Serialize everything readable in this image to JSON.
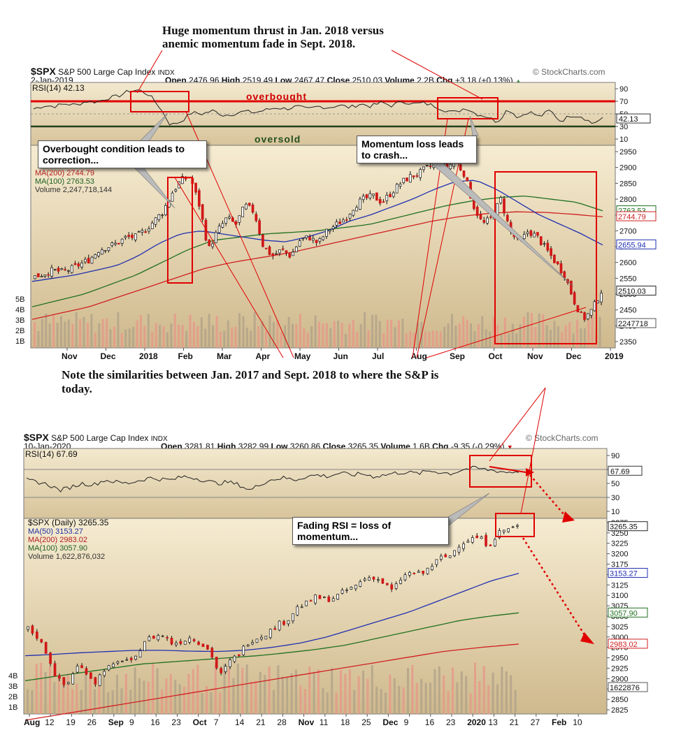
{
  "captions": {
    "top_line1": "Huge momentum thrust in Jan. 2018 versus",
    "top_line2": "anemic momentum fade in Sept. 2018.",
    "middle_line1": "Note the similarities between Jan. 2017 and Sept. 2018 to where the S&P is",
    "middle_line2": "today."
  },
  "chart_data": [
    {
      "type": "candlestick",
      "symbol": "$SPX",
      "name": "S&P 500 Large Cap Index",
      "exchange": "INDX",
      "date": "2-Jan-2019",
      "watermark": "© StockCharts.com",
      "quote": {
        "open": "2476.96",
        "high": "2519.49",
        "low": "2467.47",
        "close": "2510.03",
        "volume": "2.2B",
        "chg": "+3.18 (+0.13%)",
        "chg_arrow": "▲",
        "labels": {
          "open": "Open",
          "high": "High",
          "low": "Low",
          "close": "Close",
          "volume": "Volume",
          "chg": "Chg"
        }
      },
      "rsi": {
        "label": "RSI(14) 42.13",
        "value": 42.13,
        "value_label": "42.13",
        "ticks": [
          "90",
          "70",
          "50",
          "30",
          "10"
        ],
        "overbought": "overbought",
        "oversold": "oversold",
        "series": [
          58,
          63,
          62,
          66,
          64,
          70,
          69,
          75,
          78,
          86,
          88,
          80,
          60,
          32,
          38,
          52,
          50,
          55,
          48,
          50,
          54,
          52,
          56,
          60,
          58,
          62,
          57,
          62,
          60,
          64,
          60,
          66,
          62,
          68,
          63,
          70,
          66,
          67,
          63,
          56,
          52,
          60,
          50,
          46,
          37,
          58,
          44,
          54,
          45,
          56,
          38,
          48,
          46,
          35,
          42
        ]
      },
      "price": {
        "ticks": [
          "2950",
          "2900",
          "2850",
          "2800",
          "2750",
          "2700",
          "2650",
          "2600",
          "2550",
          "2500",
          "2450",
          "2400",
          "2350"
        ],
        "ylim": [
          2330,
          2970
        ],
        "last_label": "2510.03",
        "ma50_label": "2655.94",
        "ma100_label": "2763.53",
        "ma200_label": "2744.79",
        "legend": {
          "ma200": "MA(200) 2744.79",
          "ma100": "MA(100) 2763.53",
          "volume": "Volume 2,247,718,144"
        },
        "close_series": [
          2555,
          2565,
          2575,
          2570,
          2580,
          2595,
          2610,
          2640,
          2650,
          2660,
          2680,
          2680,
          2700,
          2730,
          2760,
          2820,
          2860,
          2870,
          2780,
          2640,
          2700,
          2740,
          2720,
          2780,
          2760,
          2650,
          2620,
          2640,
          2620,
          2670,
          2680,
          2660,
          2700,
          2720,
          2740,
          2780,
          2800,
          2810,
          2790,
          2820,
          2850,
          2870,
          2880,
          2900,
          2910,
          2900,
          2920,
          2880,
          2780,
          2720,
          2740,
          2800,
          2700,
          2660,
          2700,
          2680,
          2640,
          2600,
          2560,
          2480,
          2420,
          2450,
          2510
        ],
        "ma50_series": [
          2540,
          2550,
          2560,
          2575,
          2590,
          2620,
          2660,
          2690,
          2700,
          2690,
          2680,
          2670,
          2665,
          2680,
          2700,
          2730,
          2750,
          2775,
          2800,
          2830,
          2855,
          2860,
          2830,
          2790,
          2750,
          2720,
          2690,
          2655
        ],
        "ma100_series": [
          2460,
          2480,
          2500,
          2530,
          2560,
          2600,
          2640,
          2670,
          2680,
          2690,
          2695,
          2700,
          2710,
          2720,
          2740,
          2760,
          2780,
          2795,
          2805,
          2810,
          2800,
          2790,
          2763
        ],
        "ma200_series": [
          2420,
          2440,
          2460,
          2490,
          2520,
          2550,
          2580,
          2600,
          2615,
          2630,
          2650,
          2670,
          2690,
          2710,
          2730,
          2745,
          2755,
          2760,
          2758,
          2752,
          2744
        ]
      },
      "volume": {
        "ticks": [
          "5B",
          "4B",
          "3B",
          "2B",
          "1B"
        ],
        "last_label": "2247718"
      },
      "x_ticks": [
        "Nov",
        "Dec",
        "2018",
        "Feb",
        "Mar",
        "Apr",
        "May",
        "Jun",
        "Jul",
        "Aug",
        "Sep",
        "Oct",
        "Nov",
        "Dec",
        "2019"
      ],
      "callouts": {
        "left": "Overbought condition leads to correction...",
        "right": "Momentum loss leads to crash..."
      }
    },
    {
      "type": "candlestick",
      "symbol": "$SPX",
      "name": "S&P 500 Large Cap Index",
      "exchange": "INDX",
      "date": "10-Jan-2020",
      "watermark": "© StockCharts.com",
      "quote": {
        "open": "3281.81",
        "high": "3282.99",
        "low": "3260.86",
        "close": "3265.35",
        "volume": "1.6B",
        "chg": "-9.35 (-0.29%)",
        "chg_arrow": "▼",
        "labels": {
          "open": "Open",
          "high": "High",
          "low": "Low",
          "close": "Close",
          "volume": "Volume",
          "chg": "Chg"
        }
      },
      "rsi": {
        "label": "RSI(14) 67.69",
        "value": 67.69,
        "value_label": "67.69",
        "ticks": [
          "90",
          "70",
          "50",
          "30",
          "10"
        ],
        "series": [
          55,
          52,
          48,
          40,
          45,
          50,
          48,
          55,
          52,
          50,
          54,
          58,
          56,
          55,
          60,
          58,
          54,
          50,
          52,
          48,
          40,
          50,
          56,
          58,
          55,
          60,
          62,
          60,
          65,
          62,
          64,
          60,
          62,
          65,
          66,
          64,
          68,
          66,
          64,
          70,
          72,
          70,
          68,
          66,
          67
        ]
      },
      "price": {
        "ticks": [
          "3275",
          "3250",
          "3225",
          "3200",
          "3175",
          "3150",
          "3125",
          "3100",
          "3075",
          "3050",
          "3025",
          "3000",
          "2975",
          "2950",
          "2925",
          "2900",
          "2875",
          "2850",
          "2825"
        ],
        "ylim": [
          2815,
          3285
        ],
        "last_label": "3265.35",
        "ma50_label": "3153.27",
        "ma100_label": "3057.90",
        "ma200_label": "2983.02",
        "legend": {
          "title": "$SPX (Daily) 3265.35",
          "ma50": "MA(50) 3153.27",
          "ma200": "MA(200) 2983.02",
          "ma100": "MA(100) 3057.90",
          "volume": "Volume 1,622,876,032"
        },
        "close_series": [
          3020,
          3000,
          2960,
          2900,
          2880,
          2930,
          2920,
          2890,
          2925,
          2930,
          2950,
          2935,
          2990,
          3000,
          3005,
          2985,
          2990,
          3000,
          2985,
          2965,
          2905,
          2940,
          2960,
          2990,
          3000,
          3010,
          3030,
          3040,
          3070,
          3080,
          3095,
          3090,
          3095,
          3110,
          3120,
          3140,
          3145,
          3130,
          3110,
          3145,
          3155,
          3150,
          3170,
          3190,
          3195,
          3225,
          3235,
          3240,
          3220,
          3250,
          3260,
          3265
        ],
        "ma50_series": [
          2955,
          2958,
          2962,
          2965,
          2968,
          2968,
          2966,
          2965,
          2968,
          2975,
          2985,
          3000,
          3020,
          3040,
          3060,
          3085,
          3110,
          3135,
          3153
        ],
        "ma100_series": [
          2895,
          2905,
          2915,
          2925,
          2935,
          2940,
          2945,
          2950,
          2955,
          2962,
          2970,
          2980,
          2995,
          3010,
          3025,
          3040,
          3050,
          3058
        ],
        "ma200_series": [
          2800,
          2815,
          2830,
          2845,
          2860,
          2875,
          2890,
          2905,
          2920,
          2935,
          2950,
          2965,
          2975,
          2983
        ]
      },
      "volume": {
        "ticks": [
          "4B",
          "3B",
          "2B",
          "1B"
        ],
        "last_label": "1622876"
      },
      "x_ticks": [
        "Aug",
        "12",
        "19",
        "26",
        "Sep",
        "9",
        "16",
        "23",
        "Oct",
        "7",
        "14",
        "21",
        "28",
        "Nov",
        "11",
        "18",
        "25",
        "Dec",
        "9",
        "16",
        "23",
        "2020",
        "13",
        "21",
        "27",
        "Feb",
        "10"
      ],
      "callouts": {
        "main": "Fading RSI = loss of momentum..."
      }
    }
  ]
}
